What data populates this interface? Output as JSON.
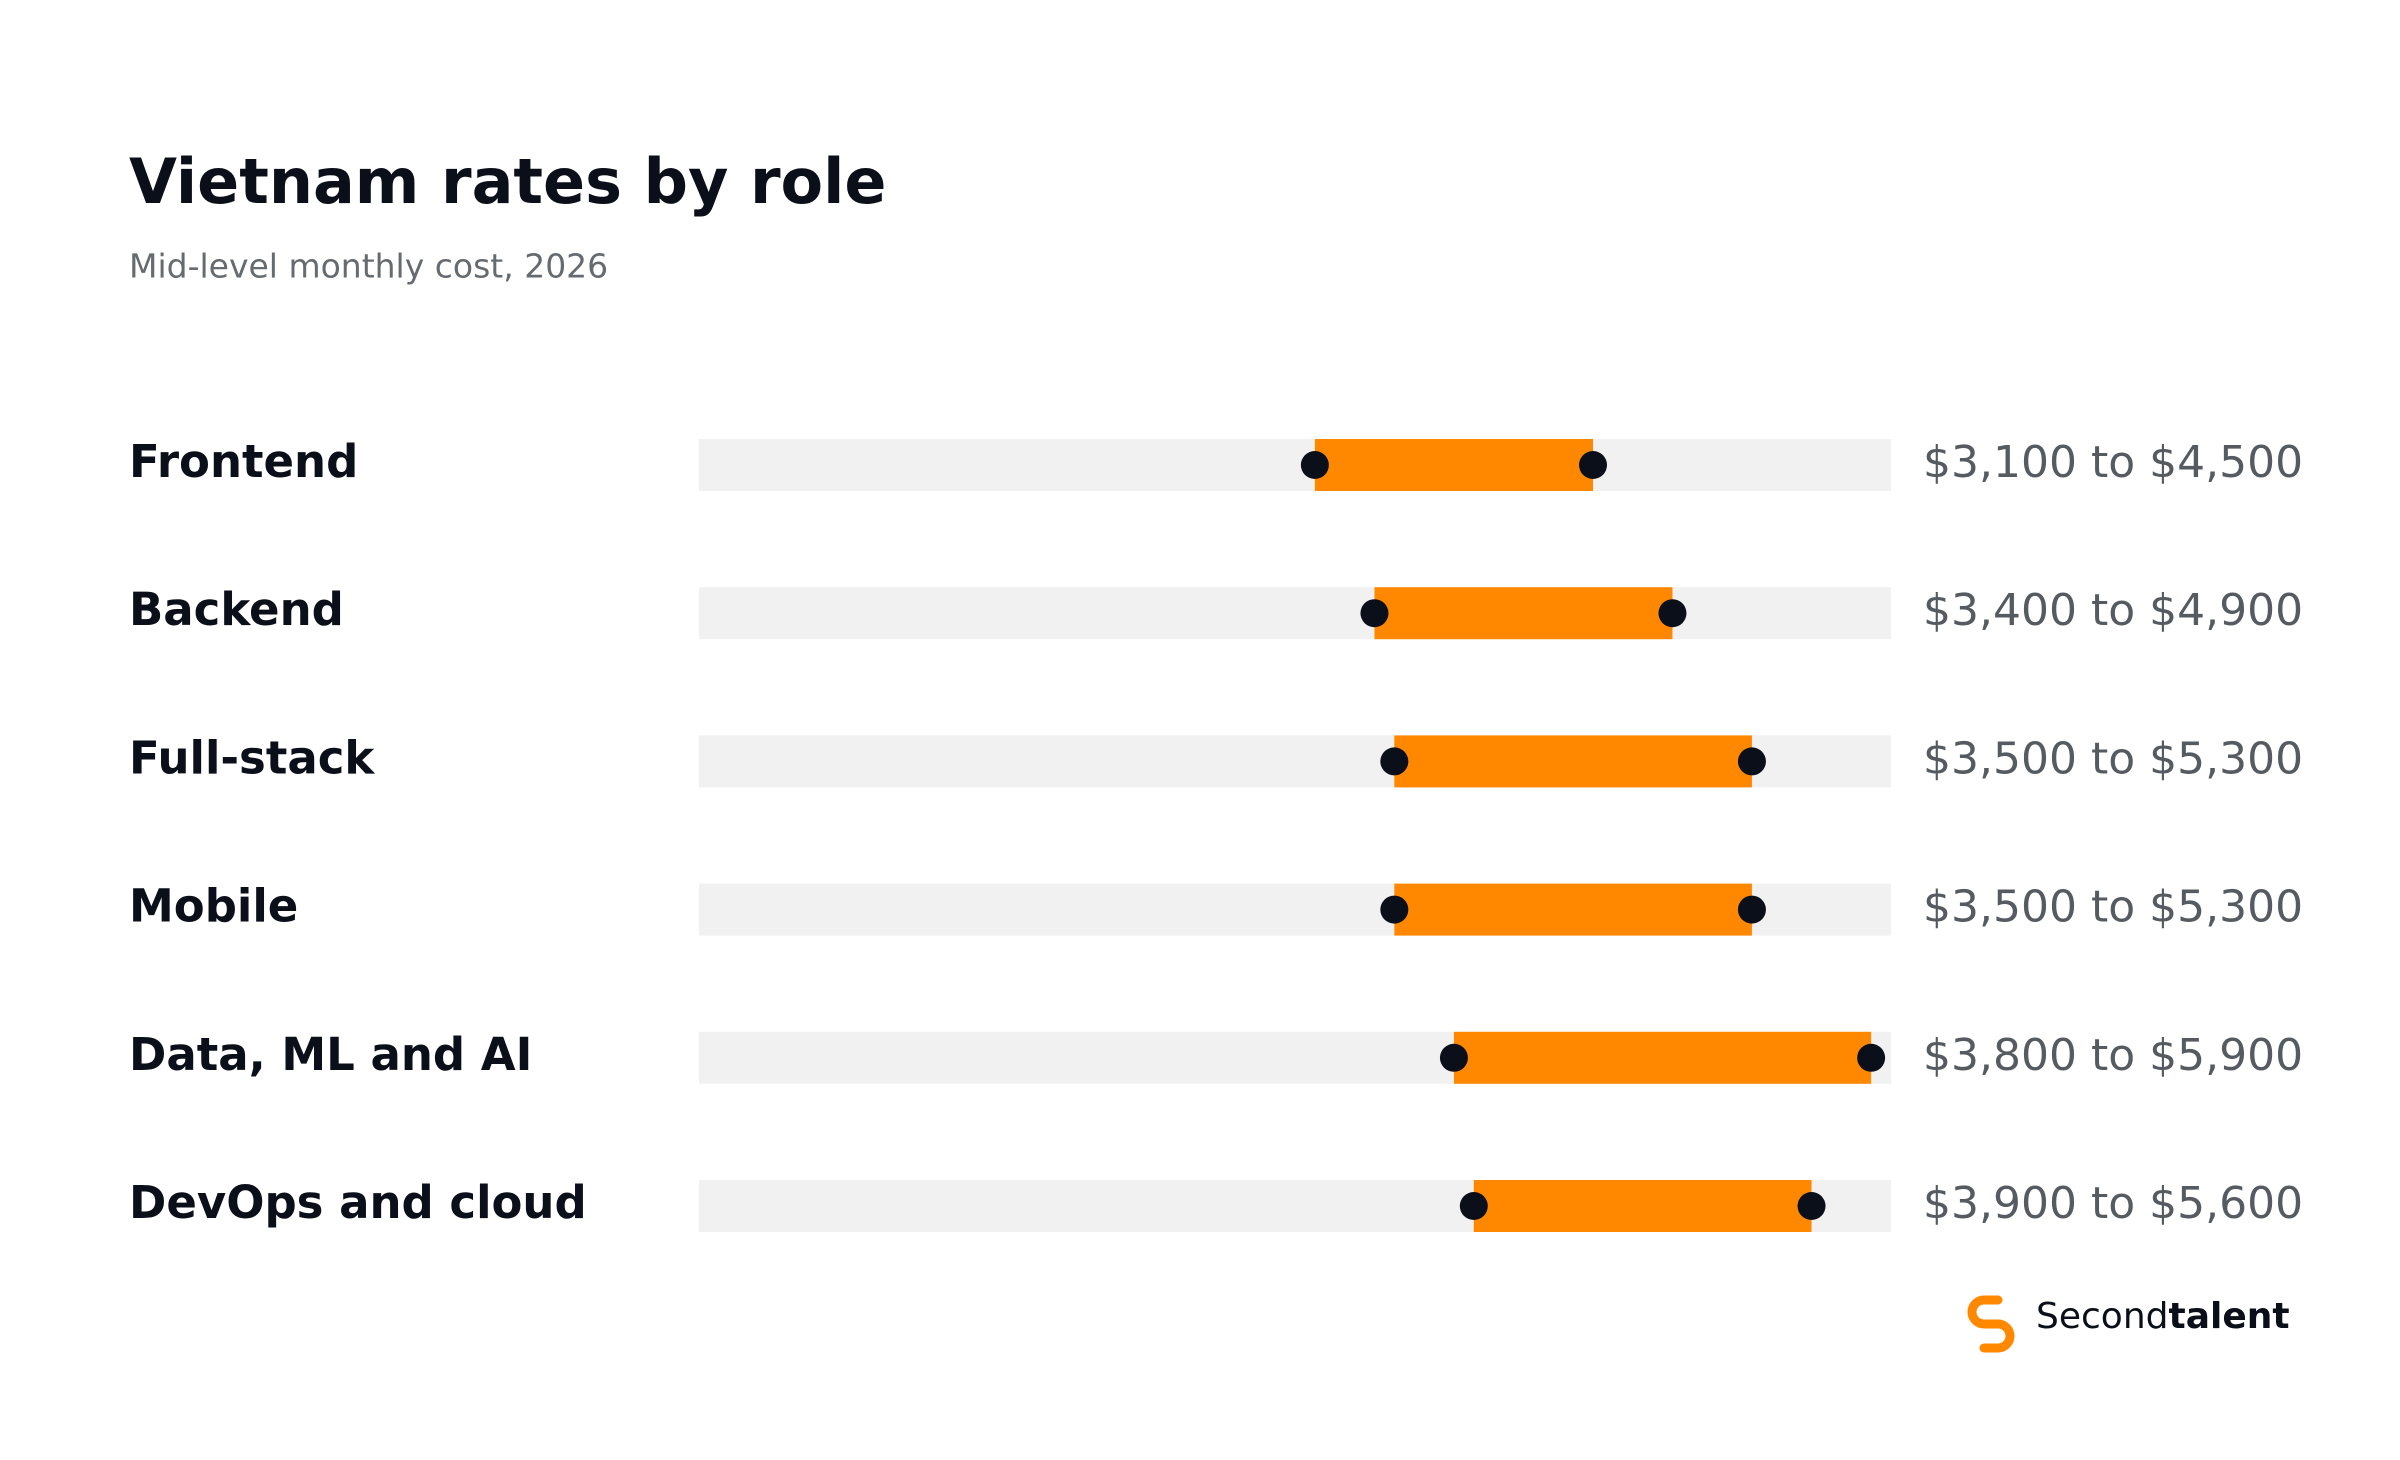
{
  "chart_data": {
    "type": "range",
    "title": "Vietnam rates by role",
    "subtitle": "Mid-level monthly cost, 2026",
    "categories": [
      "Frontend",
      "Backend",
      "Full-stack",
      "Mobile",
      "Data, ML and AI",
      "DevOps and cloud"
    ],
    "low": [
      3100,
      3400,
      3500,
      3500,
      3800,
      3900
    ],
    "high": [
      4500,
      4900,
      5300,
      5300,
      5900,
      5600
    ],
    "value_labels": [
      "$3,100 to $4,500",
      "$3,400 to $4,900",
      "$3,500 to $5,300",
      "$3,500 to $5,300",
      "$3,800 to $5,900",
      "$3,900 to $5,600"
    ],
    "xlim": [
      0,
      6000
    ],
    "color": "#ff8800",
    "track_color": "#f0f1f0",
    "dot_color": "#0b0f19"
  },
  "brand": {
    "regular": "Second",
    "bold": "talent"
  }
}
